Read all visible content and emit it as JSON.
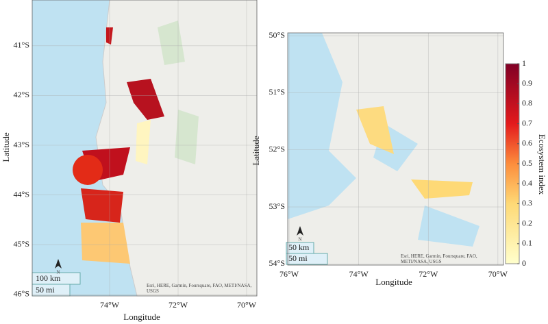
{
  "panels": [
    {
      "xlim": [
        -76.26,
        -69.7
      ],
      "ylim": [
        -46.03,
        -40.08
      ],
      "xticks": [
        {
          "value": -74,
          "label": "74°W"
        },
        {
          "value": -72,
          "label": "72°W"
        },
        {
          "value": -70,
          "label": "70°W"
        }
      ],
      "yticks": [
        {
          "value": -41,
          "label": "41°S"
        },
        {
          "value": -42,
          "label": "42°S"
        },
        {
          "value": -43,
          "label": "43°S"
        },
        {
          "value": -44,
          "label": "44°S"
        },
        {
          "value": -45,
          "label": "45°S"
        },
        {
          "value": -46,
          "label": "46°S"
        }
      ],
      "xlabel": "Longitude",
      "ylabel": "Latitude",
      "north": "N",
      "scale_km": "100 km",
      "scale_mi": "50 mi",
      "attribution": "Esri, HERE, Garmin, Foursquare, FAO, METI/NASA, USGS"
    },
    {
      "xlim": [
        -76.04,
        -69.84
      ],
      "ylim": [
        -54.02,
        -49.95
      ],
      "xticks": [
        {
          "value": -76,
          "label": "76°W"
        },
        {
          "value": -74,
          "label": "74°W"
        },
        {
          "value": -72,
          "label": "72°W"
        },
        {
          "value": -70,
          "label": "70°W"
        }
      ],
      "yticks": [
        {
          "value": -50,
          "label": "50°S"
        },
        {
          "value": -51,
          "label": "51°S"
        },
        {
          "value": -52,
          "label": "52°S"
        },
        {
          "value": -53,
          "label": "53°S"
        },
        {
          "value": -54,
          "label": "54°S"
        }
      ],
      "xlabel": "Longitude",
      "ylabel": "Latitude",
      "north": "N",
      "scale_km": "50 km",
      "scale_mi": "50 mi",
      "attribution": "Esri, HERE, Garmin, Foursquare, FAO, METI/NASA, USGS"
    }
  ],
  "colorbar": {
    "label": "Ecosystem index",
    "lim": [
      0,
      1
    ],
    "ticks": [
      0,
      0.1,
      0.2,
      0.3,
      0.4,
      0.5,
      0.6,
      0.7,
      0.8,
      0.9,
      1
    ]
  }
}
